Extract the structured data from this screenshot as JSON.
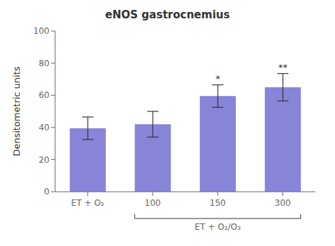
{
  "chart_data": {
    "type": "bar",
    "title": "eNOS gastrocnemius",
    "ylabel": "Densitometric units",
    "categories": [
      "ET + O₂",
      "100",
      "150",
      "300"
    ],
    "values": [
      39.5,
      42.0,
      59.5,
      65.0
    ],
    "errors": [
      7.0,
      8.0,
      7.0,
      8.5
    ],
    "ylim": [
      0,
      100
    ],
    "yticks": [
      0,
      20,
      40,
      60,
      80,
      100
    ],
    "color": "#8884d8",
    "annotations": [
      {
        "category": "150",
        "text": "*"
      },
      {
        "category": "300",
        "text": "**"
      }
    ],
    "group": {
      "label": "ET + O₂/O₃",
      "categories": [
        "100",
        "150",
        "300"
      ]
    }
  }
}
